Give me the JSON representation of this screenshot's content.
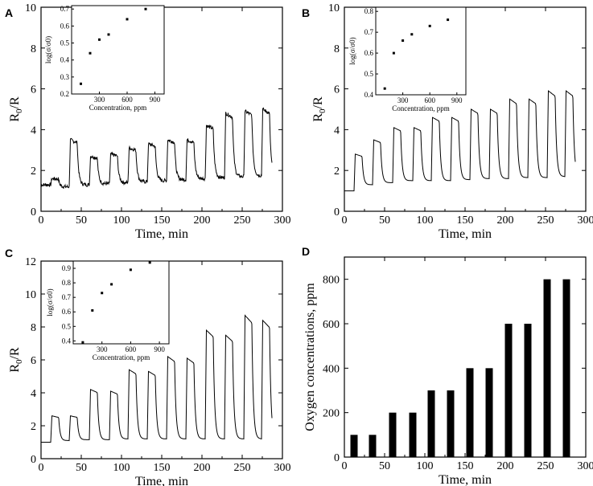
{
  "figure": {
    "panels": [
      "A",
      "B",
      "C",
      "D"
    ]
  },
  "chart_data": [
    {
      "panel": "A",
      "type": "line",
      "xlabel": "Time, min",
      "ylabel_main": "R",
      "ylabel_sub": "0",
      "ylabel_rest": "/R",
      "xlim": [
        0,
        300
      ],
      "ylim": [
        0,
        10
      ],
      "xticks": [
        0,
        50,
        100,
        150,
        200,
        250,
        300
      ],
      "yticks": [
        0,
        2,
        4,
        6,
        8,
        10
      ],
      "baseline": [
        1.3,
        1.2,
        1.3,
        1.35,
        1.4,
        1.45,
        1.5,
        1.55,
        1.6,
        1.65,
        1.7,
        1.75
      ],
      "peaks": [
        1.6,
        3.5,
        2.7,
        2.8,
        3.1,
        3.3,
        3.5,
        3.5,
        4.2,
        4.8,
        4.9,
        5.0
      ],
      "pulse_starts": [
        12,
        35,
        60,
        85,
        108,
        132,
        156,
        180,
        204,
        228,
        252,
        274
      ],
      "inset": {
        "type": "scatter",
        "xlabel": "Concentration, ppm",
        "ylabel": "log(σ/σ0)",
        "xticks": [
          300,
          600,
          900
        ],
        "yticks": [
          0.2,
          0.3,
          0.4,
          0.5,
          0.6,
          0.7
        ],
        "xlim": [
          0,
          1000
        ],
        "ylim": [
          0.2,
          0.72
        ],
        "x": [
          100,
          200,
          300,
          400,
          600,
          800
        ],
        "y": [
          0.26,
          0.44,
          0.52,
          0.55,
          0.64,
          0.7
        ]
      }
    },
    {
      "panel": "B",
      "type": "line",
      "xlabel": "Time, min",
      "ylabel_main": "R",
      "ylabel_sub": "0",
      "ylabel_rest": "/R",
      "xlim": [
        0,
        300
      ],
      "ylim": [
        0,
        10
      ],
      "xticks": [
        0,
        50,
        100,
        150,
        200,
        250,
        300
      ],
      "yticks": [
        0,
        2,
        4,
        6,
        8,
        10
      ],
      "baseline": [
        1.0,
        1.3,
        1.4,
        1.5,
        1.5,
        1.5,
        1.55,
        1.6,
        1.6,
        1.65,
        1.65,
        1.7
      ],
      "peaks": [
        2.8,
        3.5,
        4.1,
        4.1,
        4.6,
        4.6,
        5.0,
        5.0,
        5.5,
        5.5,
        5.9,
        5.9
      ],
      "pulse_starts": [
        12,
        35,
        60,
        85,
        108,
        132,
        156,
        180,
        204,
        228,
        252,
        274
      ],
      "inset": {
        "type": "scatter",
        "xlabel": "Concentration, ppm",
        "ylabel": "log(σ/σ0)",
        "xticks": [
          300,
          600,
          900
        ],
        "yticks": [
          0.4,
          0.5,
          0.6,
          0.7,
          0.8
        ],
        "xlim": [
          0,
          1000
        ],
        "ylim": [
          0.4,
          0.82
        ],
        "x": [
          100,
          200,
          300,
          400,
          600,
          800
        ],
        "y": [
          0.43,
          0.6,
          0.66,
          0.69,
          0.73,
          0.76
        ]
      }
    },
    {
      "panel": "C",
      "type": "line",
      "xlabel": "Time, min",
      "ylabel_main": "R",
      "ylabel_sub": "0",
      "ylabel_rest": "/R",
      "xlim": [
        0,
        300
      ],
      "ylim": [
        0,
        12
      ],
      "xticks": [
        0,
        50,
        100,
        150,
        200,
        250,
        300
      ],
      "yticks": [
        0,
        2,
        4,
        6,
        8,
        10,
        12
      ],
      "baseline": [
        1.0,
        1.1,
        1.15,
        1.15,
        1.2,
        1.2,
        1.2,
        1.2,
        1.2,
        1.2,
        1.2,
        1.2
      ],
      "peaks": [
        2.6,
        2.6,
        4.2,
        4.1,
        5.4,
        5.3,
        6.2,
        6.1,
        7.8,
        7.5,
        8.7,
        8.4
      ],
      "pulse_starts": [
        12,
        35,
        60,
        85,
        108,
        132,
        156,
        180,
        204,
        228,
        252,
        274
      ],
      "inset": {
        "type": "scatter",
        "xlabel": "Concentration, ppm",
        "ylabel": "log(σ/σ0)",
        "xticks": [
          300,
          600,
          900
        ],
        "yticks": [
          0.4,
          0.5,
          0.6,
          0.7,
          0.8,
          0.9
        ],
        "xlim": [
          0,
          1000
        ],
        "ylim": [
          0.38,
          0.95
        ],
        "x": [
          100,
          200,
          300,
          400,
          600,
          800
        ],
        "y": [
          0.39,
          0.61,
          0.73,
          0.79,
          0.89,
          0.94
        ]
      }
    },
    {
      "panel": "D",
      "type": "bar",
      "xlabel": "Time, min",
      "ylabel": "Oxygen concentrations, ppm",
      "xlim": [
        0,
        300
      ],
      "ylim": [
        0,
        900
      ],
      "xticks": [
        0,
        50,
        100,
        150,
        200,
        250,
        300
      ],
      "yticks": [
        0,
        200,
        400,
        600,
        800
      ],
      "x": [
        12,
        35,
        60,
        85,
        108,
        132,
        156,
        180,
        204,
        228,
        252,
        276
      ],
      "values": [
        100,
        100,
        200,
        200,
        300,
        300,
        400,
        400,
        600,
        600,
        800,
        800
      ]
    }
  ]
}
